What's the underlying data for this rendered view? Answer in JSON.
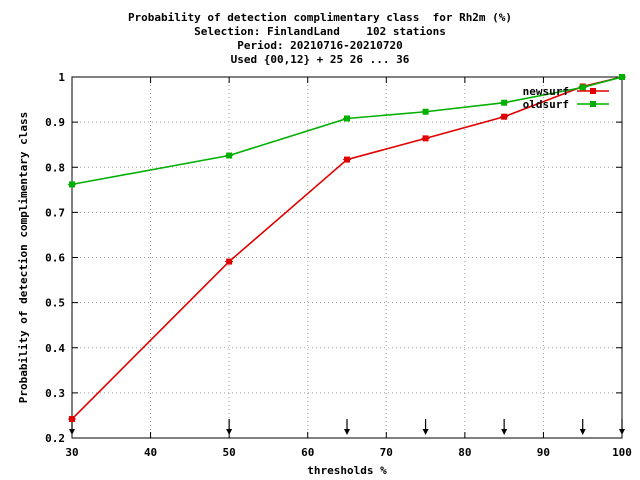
{
  "chart_data": {
    "type": "line",
    "title": "Probability of detection complimentary class  for Rh2m (%)",
    "subtitle_lines": [
      "Selection: FinlandLand    102 stations",
      "Period: 20210716-20210720",
      "Used {00,12} + 25 26 ... 36"
    ],
    "xlabel": "thresholds %",
    "ylabel": "Probability of detection complimentary class",
    "xlim": [
      30,
      100
    ],
    "ylim": [
      0.2,
      1.0
    ],
    "x_ticks": [
      30,
      40,
      50,
      60,
      70,
      80,
      90,
      100
    ],
    "y_ticks": [
      0.2,
      0.3,
      0.4,
      0.5,
      0.6,
      0.7,
      0.8,
      0.9,
      1.0
    ],
    "y_tick_labels": [
      "0.2",
      "0.3",
      "0.4",
      "0.5",
      "0.6",
      "0.7",
      "0.8",
      "0.9",
      "1"
    ],
    "legend_position": "top-right",
    "threshold_arrows_x": [
      30,
      50,
      65,
      75,
      85,
      95,
      100
    ],
    "series": [
      {
        "name": "newsurf",
        "color": "#e00000",
        "x": [
          30,
          50,
          65,
          75,
          85,
          95,
          100
        ],
        "y": [
          0.242,
          0.591,
          0.817,
          0.864,
          0.912,
          0.979,
          1.0
        ]
      },
      {
        "name": "oldsurf",
        "color": "#00b000",
        "x": [
          30,
          50,
          65,
          75,
          85,
          95,
          100
        ],
        "y": [
          0.762,
          0.826,
          0.908,
          0.923,
          0.943,
          0.977,
          1.0
        ]
      }
    ]
  }
}
